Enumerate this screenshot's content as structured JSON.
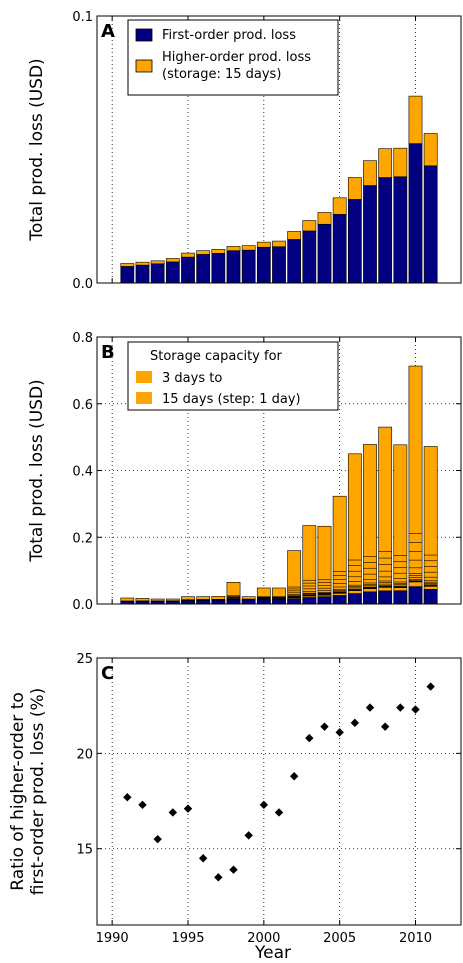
{
  "chart_data": [
    {
      "panel": "A",
      "type": "bar",
      "stacked": true,
      "x": [
        1991,
        1992,
        1993,
        1994,
        1995,
        1996,
        1997,
        1998,
        1999,
        2000,
        2001,
        2002,
        2003,
        2004,
        2005,
        2006,
        2007,
        2008,
        2009,
        2010,
        2011
      ],
      "series": [
        {
          "name": "First-order prod. loss",
          "color": "#000080",
          "values": [
            0.0062,
            0.0067,
            0.0072,
            0.0079,
            0.0097,
            0.0107,
            0.0111,
            0.0121,
            0.0123,
            0.0134,
            0.0136,
            0.0163,
            0.0195,
            0.022,
            0.0257,
            0.0313,
            0.0365,
            0.0395,
            0.0398,
            0.0522,
            0.0439
          ]
        },
        {
          "name": "Higher-order prod. loss\n(storage: 15 days)",
          "color": "#ffa500",
          "values": [
            0.0011,
            0.0011,
            0.0011,
            0.0013,
            0.0015,
            0.0014,
            0.0015,
            0.0016,
            0.0017,
            0.0019,
            0.0021,
            0.003,
            0.0039,
            0.0044,
            0.0062,
            0.0082,
            0.0093,
            0.0108,
            0.0107,
            0.0178,
            0.0121
          ]
        }
      ],
      "ylabel": "Total prod. loss (USD)",
      "ylim": [
        0,
        0.1
      ],
      "yticks": [
        "0.0",
        "0.1"
      ],
      "xlim": [
        1989,
        2013
      ],
      "grid": true,
      "legend_position": "top-left"
    },
    {
      "panel": "B",
      "type": "bar",
      "stacked": true,
      "x": [
        1991,
        1992,
        1993,
        1994,
        1995,
        1996,
        1997,
        1998,
        1999,
        2000,
        2001,
        2002,
        2003,
        2004,
        2005,
        2006,
        2007,
        2008,
        2009,
        2010,
        2011
      ],
      "first_order": [
        0.0062,
        0.0067,
        0.0072,
        0.0079,
        0.0097,
        0.0107,
        0.0111,
        0.0121,
        0.0123,
        0.0134,
        0.0136,
        0.0163,
        0.0195,
        0.022,
        0.0257,
        0.0313,
        0.0365,
        0.0395,
        0.0398,
        0.0522,
        0.0439
      ],
      "total_3_days": [
        0.018,
        0.017,
        0.015,
        0.015,
        0.022,
        0.022,
        0.023,
        0.065,
        0.022,
        0.048,
        0.048,
        0.16,
        0.235,
        0.233,
        0.323,
        0.45,
        0.478,
        0.53,
        0.477,
        0.713,
        0.472
      ],
      "storage_steps": [
        0.022,
        0.021,
        0.024,
        0.028,
        0.032,
        0.041,
        0.05,
        0.06,
        0.085,
        0.12,
        0.16,
        0.2,
        0.24
      ],
      "legend_title": "Storage capacity for",
      "legend_entries": [
        "3 days to",
        "15 days (step: 1 day)"
      ],
      "colors": {
        "first_order": "#000080",
        "storage": "#ffa500"
      },
      "ylabel": "Total prod. loss (USD)",
      "ylim": [
        0,
        0.8
      ],
      "yticks": [
        "0.0",
        "0.2",
        "0.4",
        "0.6",
        "0.8"
      ],
      "xlim": [
        1989,
        2013
      ],
      "grid": true,
      "legend_position": "top-left"
    },
    {
      "panel": "C",
      "type": "scatter",
      "x": [
        1991,
        1992,
        1993,
        1994,
        1995,
        1996,
        1997,
        1998,
        1999,
        2000,
        2001,
        2002,
        2003,
        2004,
        2005,
        2006,
        2007,
        2008,
        2009,
        2010,
        2011
      ],
      "y": [
        17.7,
        17.3,
        15.5,
        16.9,
        17.1,
        14.5,
        13.5,
        13.9,
        15.7,
        17.3,
        16.9,
        18.8,
        20.8,
        21.4,
        21.1,
        21.6,
        22.4,
        21.4,
        22.4,
        22.3,
        23.5
      ],
      "ylabel_lines": [
        "Ratio of higher-order to",
        "first-order prod. loss (%)"
      ],
      "xlabel": "Year",
      "ylim": [
        11,
        25
      ],
      "yticks": [
        "15",
        "20",
        "25"
      ],
      "xlim": [
        1989,
        2013
      ],
      "xticks": [
        "1990",
        "1995",
        "2000",
        "2005",
        "2010"
      ],
      "marker_color": "#000000",
      "grid": true
    }
  ]
}
